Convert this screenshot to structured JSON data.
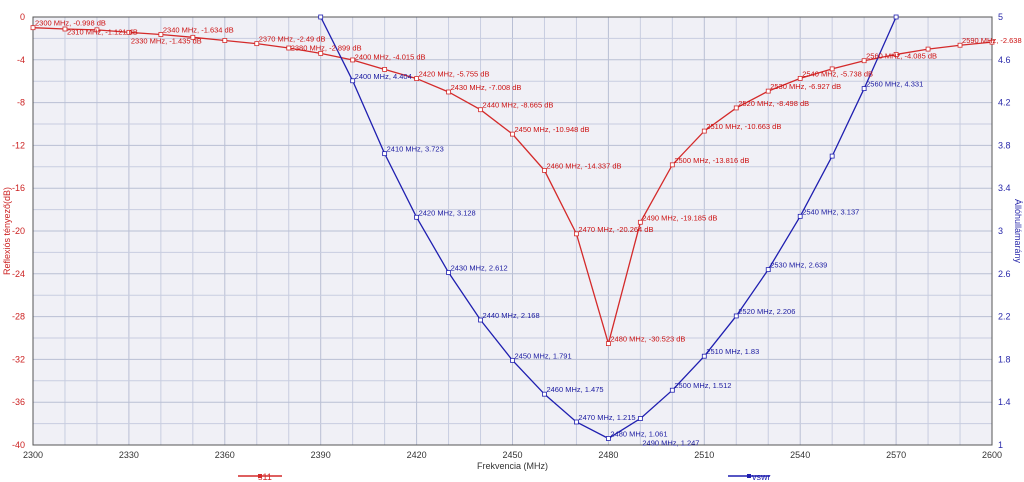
{
  "chart_data": {
    "type": "line",
    "xlabel": "Frekvencia (MHz)",
    "ylabel_left": "Reflexiós tényező(dB)",
    "ylabel_right": "Állóhullámarány",
    "xlim": [
      2300,
      2600
    ],
    "ylim_left": [
      -40,
      0
    ],
    "ylim_right": [
      1,
      5
    ],
    "x_ticks": [
      2300,
      2330,
      2360,
      2390,
      2420,
      2450,
      2480,
      2510,
      2540,
      2570,
      2600
    ],
    "y_left_ticks": [
      0,
      -4,
      -8,
      -12,
      -16,
      -20,
      -24,
      -28,
      -32,
      -36,
      -40
    ],
    "y_right_ticks": [
      "1",
      "1.4",
      "1.8",
      "2.2",
      "2.6",
      "3",
      "3.4",
      "3.8",
      "4.2",
      "4.6",
      "5"
    ],
    "colors": {
      "s11": "#d42a2a",
      "vswr": "#1f1fb0",
      "grid": "#c8cde0",
      "plot_bg": "#f0f0f6"
    },
    "series": [
      {
        "name": "s11",
        "axis": "left",
        "points": [
          [
            2300,
            -0.998
          ],
          [
            2310,
            -1.121
          ],
          [
            2320,
            -1.2
          ],
          [
            2330,
            -1.435
          ],
          [
            2340,
            -1.634
          ],
          [
            2350,
            -1.9
          ],
          [
            2360,
            -2.2
          ],
          [
            2370,
            -2.49
          ],
          [
            2380,
            -2.899
          ],
          [
            2390,
            -3.4
          ],
          [
            2400,
            -4.015
          ],
          [
            2410,
            -4.9
          ],
          [
            2420,
            -5.755
          ],
          [
            2430,
            -7.008
          ],
          [
            2440,
            -8.665
          ],
          [
            2450,
            -10.948
          ],
          [
            2460,
            -14.337
          ],
          [
            2470,
            -20.264
          ],
          [
            2480,
            -30.523
          ],
          [
            2490,
            -19.185
          ],
          [
            2500,
            -13.816
          ],
          [
            2510,
            -10.663
          ],
          [
            2520,
            -8.498
          ],
          [
            2530,
            -6.927
          ],
          [
            2540,
            -5.738
          ],
          [
            2550,
            -4.85
          ],
          [
            2560,
            -4.085
          ],
          [
            2570,
            -3.5
          ],
          [
            2580,
            -3.0
          ],
          [
            2590,
            -2.638
          ],
          [
            2600,
            -2.35
          ]
        ],
        "labels": [
          {
            "x": 2300,
            "text": "2300 MHz, -0.998 dB"
          },
          {
            "x": 2310,
            "text": "2310 MHz, -1.121 dB"
          },
          {
            "x": 2330,
            "text": "2330 MHz, -1.435 dB"
          },
          {
            "x": 2340,
            "text": "2340 MHz, -1.634 dB"
          },
          {
            "x": 2370,
            "text": "2370 MHz, -2.49 dB"
          },
          {
            "x": 2380,
            "text": "2380 MHz, -2.899 dB"
          },
          {
            "x": 2400,
            "text": "2400 MHz, -4.015 dB"
          },
          {
            "x": 2420,
            "text": "2420 MHz, -5.755 dB"
          },
          {
            "x": 2430,
            "text": "2430 MHz, -7.008 dB"
          },
          {
            "x": 2440,
            "text": "2440 MHz, -8.665 dB"
          },
          {
            "x": 2450,
            "text": "2450 MHz, -10.948 dB"
          },
          {
            "x": 2460,
            "text": "2460 MHz, -14.337 dB"
          },
          {
            "x": 2470,
            "text": "2470 MHz, -20.264 dB"
          },
          {
            "x": 2480,
            "text": "2480 MHz, -30.523 dB"
          },
          {
            "x": 2490,
            "text": "2490 MHz, -19.185 dB"
          },
          {
            "x": 2500,
            "text": "2500 MHz, -13.816 dB"
          },
          {
            "x": 2510,
            "text": "2510 MHz, -10.663 dB"
          },
          {
            "x": 2520,
            "text": "2520 MHz, -8.498 dB"
          },
          {
            "x": 2530,
            "text": "2530 MHz, -6.927 dB"
          },
          {
            "x": 2540,
            "text": "2540 MHz, -5.738 dB"
          },
          {
            "x": 2560,
            "text": "2560 MHz, -4.085 dB"
          },
          {
            "x": 2590,
            "text": "2590 MHz, -2.638 dB"
          }
        ]
      },
      {
        "name": "vswr",
        "axis": "right",
        "points": [
          [
            2390,
            5.0
          ],
          [
            2400,
            4.404
          ],
          [
            2410,
            3.723
          ],
          [
            2420,
            3.128
          ],
          [
            2430,
            2.612
          ],
          [
            2440,
            2.168
          ],
          [
            2450,
            1.791
          ],
          [
            2460,
            1.475
          ],
          [
            2470,
            1.215
          ],
          [
            2480,
            1.061
          ],
          [
            2490,
            1.247
          ],
          [
            2500,
            1.512
          ],
          [
            2510,
            1.83
          ],
          [
            2520,
            2.206
          ],
          [
            2530,
            2.639
          ],
          [
            2540,
            3.137
          ],
          [
            2550,
            3.7
          ],
          [
            2560,
            4.331
          ],
          [
            2570,
            5.0
          ]
        ],
        "labels": [
          {
            "x": 2400,
            "text": "2400 MHz, 4.404"
          },
          {
            "x": 2410,
            "text": "2410 MHz, 3.723"
          },
          {
            "x": 2420,
            "text": "2420 MHz, 3.128"
          },
          {
            "x": 2430,
            "text": "2430 MHz, 2.612"
          },
          {
            "x": 2440,
            "text": "2440 MHz, 2.168"
          },
          {
            "x": 2450,
            "text": "2450 MHz, 1.791"
          },
          {
            "x": 2460,
            "text": "2460 MHz, 1.475"
          },
          {
            "x": 2470,
            "text": "2470 MHz, 1.215"
          },
          {
            "x": 2480,
            "text": "2480 MHz, 1.061"
          },
          {
            "x": 2490,
            "text": "2490 MHz, 1.247"
          },
          {
            "x": 2500,
            "text": "2500 MHz, 1.512"
          },
          {
            "x": 2510,
            "text": "2510 MHz, 1.83"
          },
          {
            "x": 2520,
            "text": "2520 MHz, 2.206"
          },
          {
            "x": 2530,
            "text": "2530 MHz, 2.639"
          },
          {
            "x": 2540,
            "text": "2540 MHz, 3.137"
          },
          {
            "x": 2560,
            "text": "2560 MHz, 4.331"
          }
        ]
      }
    ],
    "legend": [
      {
        "name": "s11",
        "color": "#d42a2a"
      },
      {
        "name": "vswr",
        "color": "#1f1fb0"
      }
    ]
  }
}
